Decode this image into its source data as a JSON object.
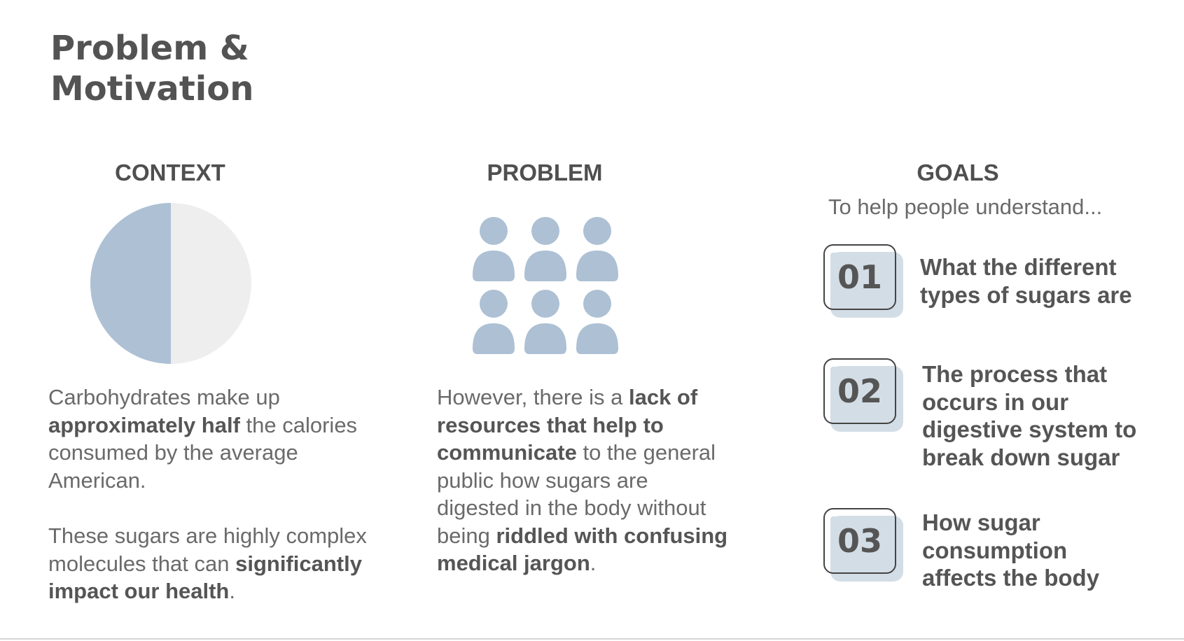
{
  "title": "Problem & Motivation",
  "colors": {
    "accent": "#adc0d4",
    "pie_light": "#eeeeee",
    "text": "#555555",
    "badge_fill": "#d3dde6"
  },
  "context": {
    "heading": "CONTEXT",
    "pie_icon": "half-pie-chart-icon",
    "pie_fraction": 0.5,
    "paragraph1": {
      "t1": "Carbohydrates make up ",
      "b1": "approximately half",
      "t2": " the calories consumed by the average American."
    },
    "paragraph2": {
      "t1": "These sugars are highly complex molecules that can ",
      "b1": "significantly impact our health",
      "t2": "."
    }
  },
  "problem": {
    "heading": "PROBLEM",
    "people_icon": "people-group-icon",
    "paragraph": {
      "t1": "However, there is a ",
      "b1": "lack of resources that help to communicate",
      "t2": " to the general public how sugars are digested in the body without being ",
      "b2": "riddled with confusing medical jargon",
      "t3": "."
    }
  },
  "goals": {
    "heading": "GOALS",
    "subtitle": "To help people understand...",
    "items": [
      {
        "number": "01",
        "text": "What the different types of sugars are"
      },
      {
        "number": "02",
        "text": "The process that occurs in our digestive system to break down sugar"
      },
      {
        "number": "03",
        "text": "How sugar consumption affects the body"
      }
    ]
  }
}
